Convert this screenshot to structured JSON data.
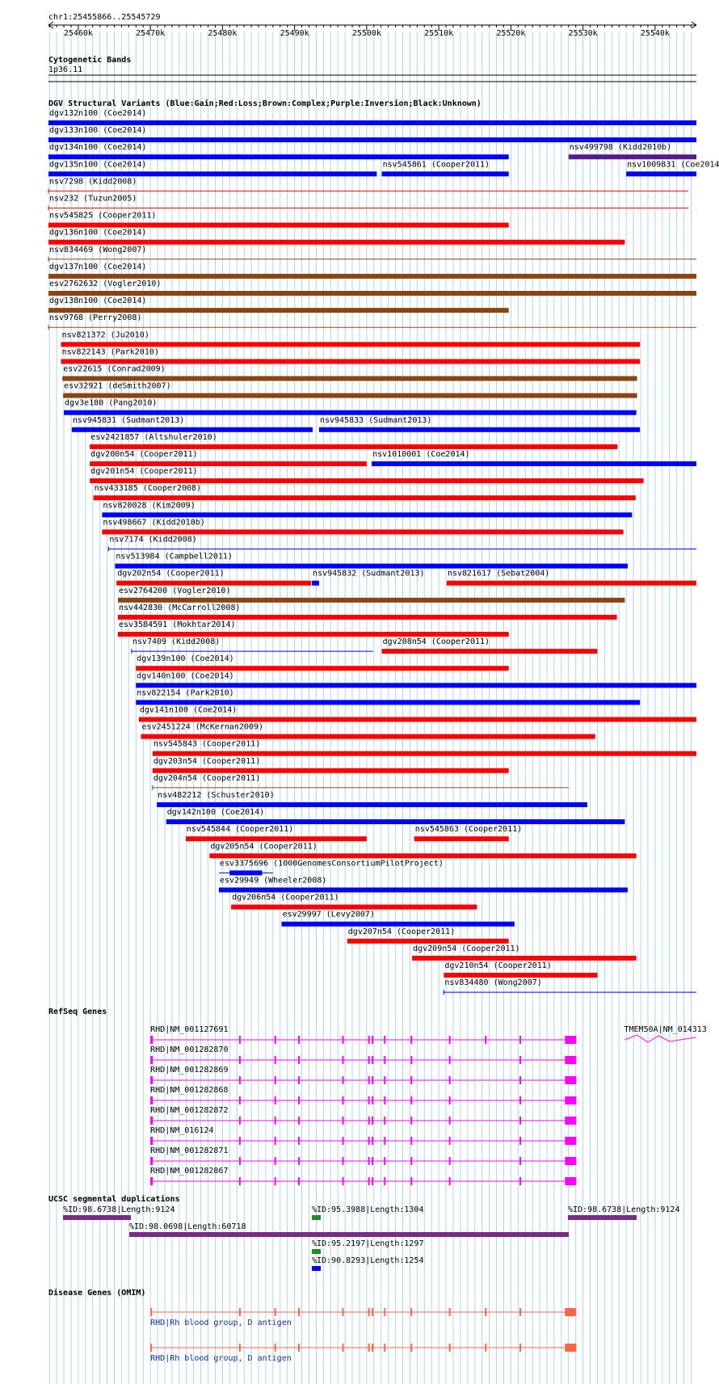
{
  "ruler": {
    "region": "chr1:25455866..25545729",
    "ticks": [
      "25460k",
      "25470k",
      "25480k",
      "25490k",
      "25500k",
      "25510k",
      "25520k",
      "25530k",
      "25540k"
    ]
  },
  "tracks": {
    "cyto": {
      "title": "Cytogenetic Bands",
      "band": "1p36.11"
    },
    "dgv": {
      "title": "DGV Structural Variants (Blue:Gain;Red:Loss;Brown:Complex;Purple:Inversion;Black:Unknown)"
    },
    "refseq": {
      "title": "RefSeq Genes"
    },
    "segdup": {
      "title": "UCSC segmental duplications"
    },
    "omim": {
      "title": "Disease Genes (OMIM)"
    }
  },
  "colors": {
    "gain": "#0000ff",
    "loss": "#ff0000",
    "complex": "#8b4513",
    "inversion": "#551a8b",
    "gene": "#ff00ff",
    "omim": "#ff6347",
    "segdup_purple": "#7b2a8a",
    "segdup_green": "#228b22",
    "segdup_blue": "#0000ff",
    "grid": "#a8d8e8"
  },
  "dgv_variants": [
    {
      "label": "dgv132n100 (Coe2014)",
      "type": "gain",
      "start": 25455866,
      "end": 25545729
    },
    {
      "label": "dgv133n100 (Coe2014)",
      "type": "gain",
      "start": 25455866,
      "end": 25545729
    },
    {
      "label": "dgv134n100 (Coe2014)",
      "type": "gain",
      "start": 25455866,
      "end": 25519700
    },
    {
      "label": "nsv499798 (Kidd2010b)",
      "type": "inversion",
      "start": 25528000,
      "end": 25545729
    },
    {
      "label": "dgv135n100 (Coe2014)",
      "type": "gain",
      "start": 25455866,
      "end": 25501400
    },
    {
      "label": "nsv545861 (Cooper2011)",
      "type": "gain",
      "start": 25502100,
      "end": 25519700
    },
    {
      "label": "nsv1009831 (Coe2014)",
      "type": "gain",
      "start": 25536000,
      "end": 25545729
    },
    {
      "label": "nsv7298 (Kidd2008)",
      "type": "loss",
      "start": 25455866,
      "end": 25544600
    },
    {
      "label": "nsv232 (Tuzun2005)",
      "type": "loss",
      "start": 25455866,
      "end": 25544600
    },
    {
      "label": "nsv545825 (Cooper2011)",
      "type": "loss",
      "start": 25455866,
      "end": 25519700
    },
    {
      "label": "dgv136n100 (Coe2014)",
      "type": "loss",
      "start": 25455866,
      "end": 25535800
    },
    {
      "label": "nsv834469 (Wong2007)",
      "type": "complex",
      "start": 25455866,
      "end": 25545729
    },
    {
      "label": "dgv137n100 (Coe2014)",
      "type": "complex",
      "start": 25455866,
      "end": 25545729
    },
    {
      "label": "esv2762632 (Vogler2010)",
      "type": "complex",
      "start": 25455866,
      "end": 25545729
    },
    {
      "label": "dgv138n100 (Coe2014)",
      "type": "complex",
      "start": 25455866,
      "end": 25519700
    },
    {
      "label": "nsv9768 (Perry2008)",
      "type": "complex",
      "start": 25455866,
      "end": 25545729
    },
    {
      "label": "nsv821372 (Ju2010)",
      "type": "loss",
      "start": 25457600,
      "end": 25537900
    },
    {
      "label": "nsv822143 (Park2010)",
      "type": "loss",
      "start": 25457600,
      "end": 25537900
    },
    {
      "label": "esv22615 (Conrad2009)",
      "type": "complex",
      "start": 25457800,
      "end": 25537500
    },
    {
      "label": "esv32921 (deSmith2007)",
      "type": "complex",
      "start": 25457900,
      "end": 25537500
    },
    {
      "label": "dgv3e180 (Pang2010)",
      "type": "gain",
      "start": 25458000,
      "end": 25537400
    },
    {
      "label": "nsv945831 (Sudmant2013)",
      "type": "gain",
      "start": 25459100,
      "end": 25492500
    },
    {
      "label": "nsv945833 (Sudmant2013)",
      "type": "gain",
      "start": 25493400,
      "end": 25537900
    },
    {
      "label": "esv2421857 (Altshuler2010)",
      "type": "loss",
      "start": 25461600,
      "end": 25534800
    },
    {
      "label": "dgv200n54 (Cooper2011)",
      "type": "loss",
      "start": 25461600,
      "end": 25500000
    },
    {
      "label": "nsv1010001 (Coe2014)",
      "type": "gain",
      "start": 25500700,
      "end": 25545729
    },
    {
      "label": "dgv201n54 (Cooper2011)",
      "type": "loss",
      "start": 25461600,
      "end": 25538400
    },
    {
      "label": "nsv433185 (Cooper2008)",
      "type": "loss",
      "start": 25462100,
      "end": 25537300
    },
    {
      "label": "nsv820028 (Kim2009)",
      "type": "gain",
      "start": 25463300,
      "end": 25536800
    },
    {
      "label": "nsv498667 (Kidd2010b)",
      "type": "loss",
      "start": 25463300,
      "end": 25535600
    },
    {
      "label": "nsv7174 (Kidd2008)",
      "type": "gain",
      "start": 25464200,
      "end": 25545729
    },
    {
      "label": "nsv513984 (Campbell2011)",
      "type": "gain",
      "start": 25465100,
      "end": 25536200
    },
    {
      "label": "dgv202n54 (Cooper2011)",
      "type": "loss",
      "start": 25465300,
      "end": 25492300
    },
    {
      "label": "nsv945832 (Sudmant2013)",
      "type": "gain",
      "start": 25492400,
      "end": 25493400
    },
    {
      "label": "nsv821617 (Sebat2004)",
      "type": "loss",
      "start": 25511100,
      "end": 25545729
    },
    {
      "label": "esv2764200 (Vogler2010)",
      "type": "complex",
      "start": 25465500,
      "end": 25535800
    },
    {
      "label": "nsv442830 (McCarroll2008)",
      "type": "loss",
      "start": 25465500,
      "end": 25534700
    },
    {
      "label": "esv3584591 (Mokhtar2014)",
      "type": "loss",
      "start": 25465500,
      "end": 25519700
    },
    {
      "label": "nsv7409 (Kidd2008)",
      "type": "gain",
      "start": 25467400,
      "end": 25500900
    },
    {
      "label": "dgv208n54 (Cooper2011)",
      "type": "loss",
      "start": 25502100,
      "end": 25532000
    },
    {
      "label": "dgv139n100 (Coe2014)",
      "type": "loss",
      "start": 25468000,
      "end": 25519700
    },
    {
      "label": "dgv140n100 (Coe2014)",
      "type": "gain",
      "start": 25468000,
      "end": 25545729
    },
    {
      "label": "nsv822154 (Park2010)",
      "type": "gain",
      "start": 25468000,
      "end": 25537900
    },
    {
      "label": "dgv141n100 (Coe2014)",
      "type": "loss",
      "start": 25468400,
      "end": 25545729
    },
    {
      "label": "esv2451224 (McKernan2009)",
      "type": "loss",
      "start": 25468700,
      "end": 25531700
    },
    {
      "label": "nsv545843 (Cooper2011)",
      "type": "loss",
      "start": 25470300,
      "end": 25545729
    },
    {
      "label": "dgv203n54 (Cooper2011)",
      "type": "loss",
      "start": 25470300,
      "end": 25519700
    },
    {
      "label": "dgv204n54 (Cooper2011)",
      "type": "complex",
      "start": 25470300,
      "end": 25528000
    },
    {
      "label": "nsv482212 (Schuster2010)",
      "type": "gain",
      "start": 25470900,
      "end": 25530600
    },
    {
      "label": "dgv142n100 (Coe2014)",
      "type": "gain",
      "start": 25472200,
      "end": 25535800
    },
    {
      "label": "nsv545844 (Cooper2011)",
      "type": "loss",
      "start": 25474900,
      "end": 25500000
    },
    {
      "label": "nsv545863 (Cooper2011)",
      "type": "loss",
      "start": 25506600,
      "end": 25519700
    },
    {
      "label": "dgv205n54 (Cooper2011)",
      "type": "loss",
      "start": 25478200,
      "end": 25537400
    },
    {
      "label": "esv3375696 (1000GenomesConsortiumPilotProject)",
      "type": "gain",
      "start": 25479500,
      "end": 25487000
    },
    {
      "label": "esv29949 (Wheeler2008)",
      "type": "gain",
      "start": 25479500,
      "end": 25536200
    },
    {
      "label": "dgv206n54 (Cooper2011)",
      "type": "loss",
      "start": 25481200,
      "end": 25515300
    },
    {
      "label": "esv29997 (Levy2007)",
      "type": "gain",
      "start": 25488200,
      "end": 25520500
    },
    {
      "label": "dgv207n54 (Cooper2011)",
      "type": "loss",
      "start": 25497300,
      "end": 25519700
    },
    {
      "label": "dgv209n54 (Cooper2011)",
      "type": "loss",
      "start": 25506300,
      "end": 25537400
    },
    {
      "label": "dgv210n54 (Cooper2011)",
      "type": "loss",
      "start": 25510700,
      "end": 25532000
    },
    {
      "label": "nsv834480 (Wong2007)",
      "type": "gain",
      "start": 25510700,
      "end": 25545729
    }
  ],
  "refseq_genes": [
    {
      "label": "RHD|NM_001127691"
    },
    {
      "label": "RHD|NM_001282870"
    },
    {
      "label": "RHD|NM_001282869"
    },
    {
      "label": "RHD|NM_001282868"
    },
    {
      "label": "RHD|NM_001282872"
    },
    {
      "label": "RHD|NM_016124"
    },
    {
      "label": "RHD|NM_001282871"
    },
    {
      "label": "RHD|NM_001282867"
    },
    {
      "label": "TMEM50A|NM_014313"
    }
  ],
  "segdups": [
    {
      "label": "%ID:98.6738|Length:9124",
      "color": "segdup_purple"
    },
    {
      "label": "%ID:95.3988|Length:1304",
      "color": "segdup_green"
    },
    {
      "label": "%ID:98.6738|Length:9124",
      "color": "segdup_purple"
    },
    {
      "label": "%ID:98.0698|Length:60718",
      "color": "segdup_purple"
    },
    {
      "label": "%ID:95.2197|Length:1297",
      "color": "segdup_green"
    },
    {
      "label": "%ID:90.8293|Length:1254",
      "color": "segdup_blue"
    }
  ],
  "omim": [
    {
      "label": "RHD|Rh blood group, D antigen"
    },
    {
      "label": "RHD|Rh blood group, D antigen"
    }
  ]
}
